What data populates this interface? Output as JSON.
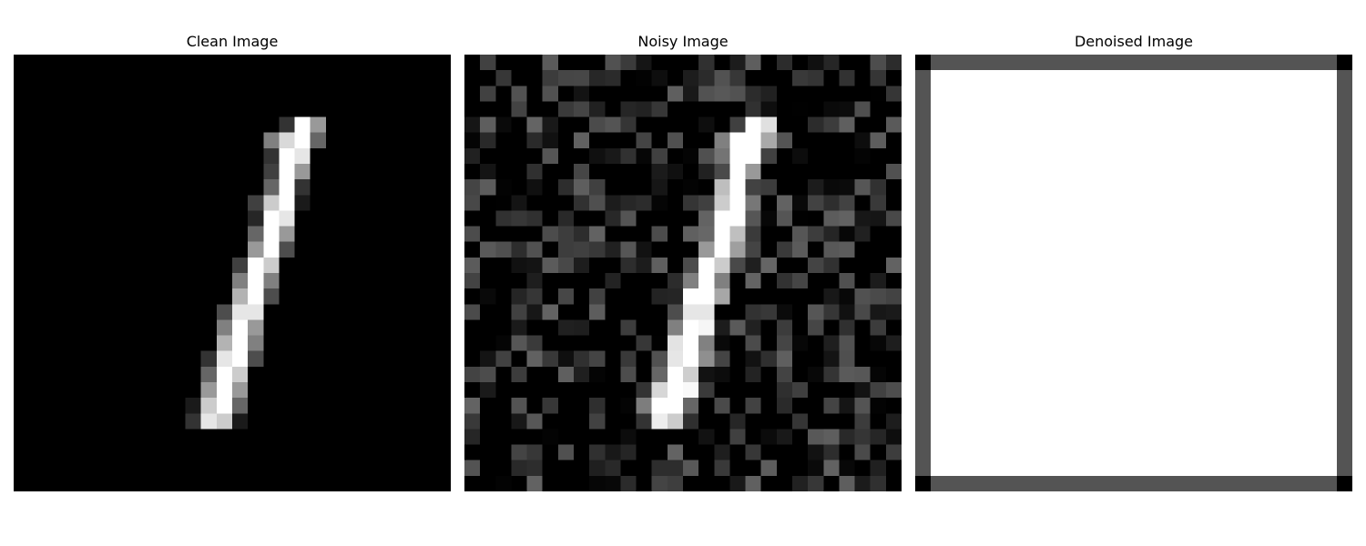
{
  "panels": [
    {
      "key": "clean",
      "title": "Clean Image"
    },
    {
      "key": "noisy",
      "title": "Noisy Image"
    },
    {
      "key": "denoised",
      "title": "Denoised Image"
    }
  ],
  "image_grid": {
    "rows": 28,
    "cols": 28,
    "colormap": "grayscale"
  },
  "clean_strokes": [
    {
      "row": 4,
      "cells": [
        [
          17,
          0.2
        ],
        [
          18,
          1.0
        ],
        [
          19,
          0.6
        ]
      ]
    },
    {
      "row": 5,
      "cells": [
        [
          16,
          0.5
        ],
        [
          17,
          0.85
        ],
        [
          18,
          1.0
        ],
        [
          19,
          0.4
        ]
      ]
    },
    {
      "row": 6,
      "cells": [
        [
          16,
          0.2
        ],
        [
          17,
          1.0
        ],
        [
          18,
          0.9
        ]
      ]
    },
    {
      "row": 7,
      "cells": [
        [
          16,
          0.25
        ],
        [
          17,
          1.0
        ],
        [
          18,
          0.6
        ]
      ]
    },
    {
      "row": 8,
      "cells": [
        [
          16,
          0.4
        ],
        [
          17,
          1.0
        ],
        [
          18,
          0.2
        ]
      ]
    },
    {
      "row": 9,
      "cells": [
        [
          15,
          0.25
        ],
        [
          16,
          0.8
        ],
        [
          17,
          1.0
        ],
        [
          18,
          0.1
        ]
      ]
    },
    {
      "row": 10,
      "cells": [
        [
          15,
          0.15
        ],
        [
          16,
          1.0
        ],
        [
          17,
          0.9
        ]
      ]
    },
    {
      "row": 11,
      "cells": [
        [
          15,
          0.4
        ],
        [
          16,
          1.0
        ],
        [
          17,
          0.6
        ]
      ]
    },
    {
      "row": 12,
      "cells": [
        [
          15,
          0.6
        ],
        [
          16,
          1.0
        ],
        [
          17,
          0.3
        ]
      ]
    },
    {
      "row": 13,
      "cells": [
        [
          14,
          0.25
        ],
        [
          15,
          1.0
        ],
        [
          16,
          0.8
        ]
      ]
    },
    {
      "row": 14,
      "cells": [
        [
          14,
          0.5
        ],
        [
          15,
          1.0
        ],
        [
          16,
          0.5
        ]
      ]
    },
    {
      "row": 15,
      "cells": [
        [
          14,
          0.7
        ],
        [
          15,
          1.0
        ],
        [
          16,
          0.3
        ]
      ]
    },
    {
      "row": 16,
      "cells": [
        [
          13,
          0.3
        ],
        [
          14,
          0.9
        ],
        [
          15,
          0.9
        ]
      ]
    },
    {
      "row": 17,
      "cells": [
        [
          13,
          0.5
        ],
        [
          14,
          1.0
        ],
        [
          15,
          0.6
        ]
      ]
    },
    {
      "row": 18,
      "cells": [
        [
          13,
          0.7
        ],
        [
          14,
          1.0
        ],
        [
          15,
          0.5
        ]
      ]
    },
    {
      "row": 19,
      "cells": [
        [
          12,
          0.2
        ],
        [
          13,
          0.9
        ],
        [
          14,
          1.0
        ],
        [
          15,
          0.3
        ]
      ]
    },
    {
      "row": 20,
      "cells": [
        [
          12,
          0.4
        ],
        [
          13,
          1.0
        ],
        [
          14,
          0.8
        ]
      ]
    },
    {
      "row": 21,
      "cells": [
        [
          12,
          0.6
        ],
        [
          13,
          1.0
        ],
        [
          14,
          0.6
        ]
      ]
    },
    {
      "row": 22,
      "cells": [
        [
          11,
          0.1
        ],
        [
          12,
          0.8
        ],
        [
          13,
          1.0
        ],
        [
          14,
          0.4
        ]
      ]
    },
    {
      "row": 23,
      "cells": [
        [
          11,
          0.2
        ],
        [
          12,
          0.9
        ],
        [
          13,
          0.8
        ],
        [
          14,
          0.1
        ]
      ]
    }
  ],
  "noise": {
    "max_intensity": 0.4,
    "probability": 0.5
  },
  "denoised": {
    "border_intensity": 0.33,
    "corner_intensity": 0.0,
    "inner_intensity": 1.0
  }
}
